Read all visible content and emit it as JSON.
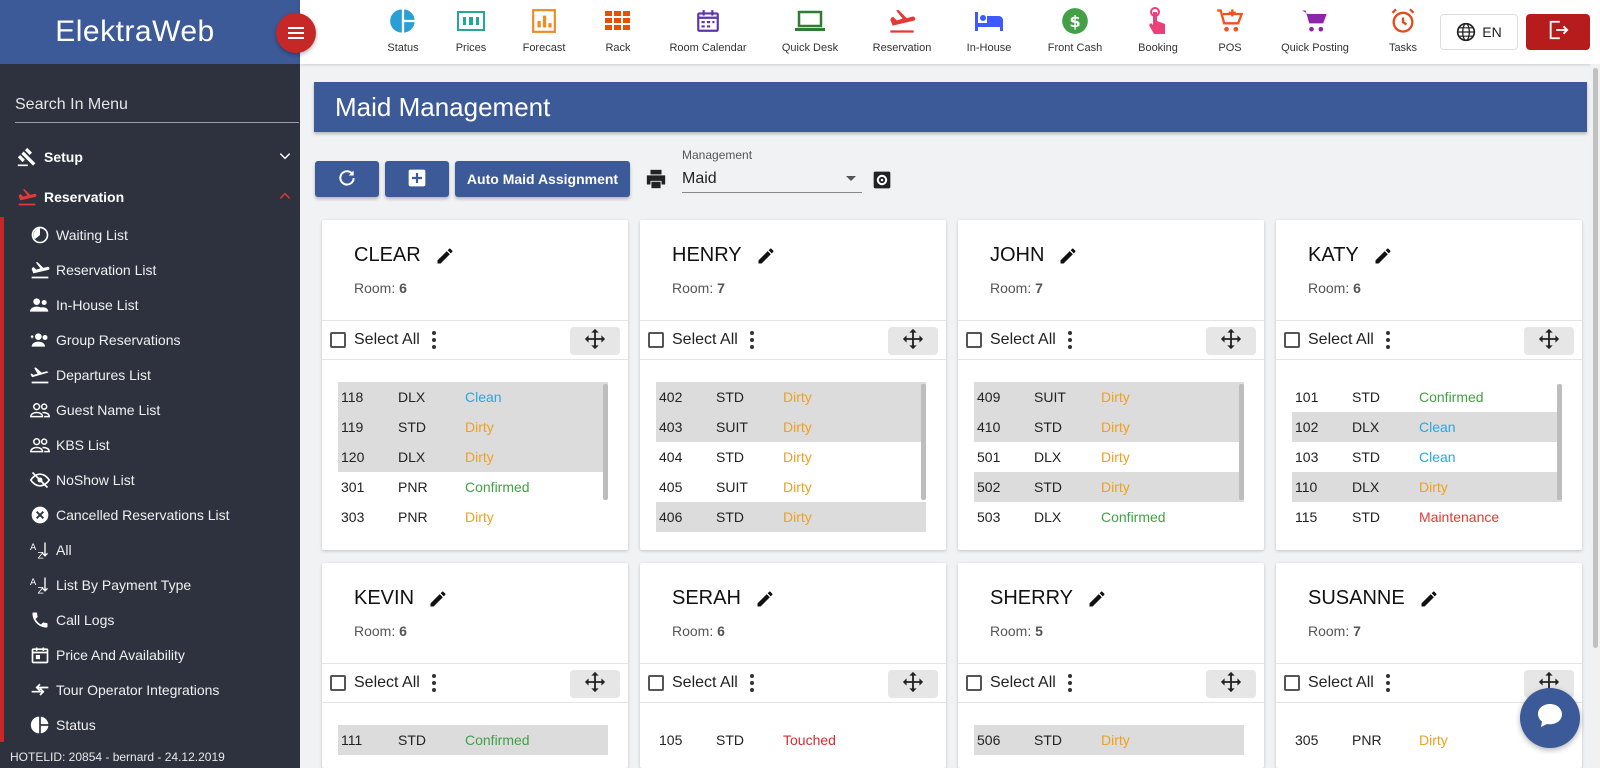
{
  "brand": {
    "name": "ElektraWeb"
  },
  "sidebar": {
    "search_placeholder": "Search In Menu",
    "groups": [
      {
        "label": "Setup",
        "expanded": false
      },
      {
        "label": "Reservation",
        "expanded": true
      }
    ],
    "items": [
      {
        "label": "Waiting List",
        "icon": "waiting-icon"
      },
      {
        "label": "Reservation List",
        "icon": "plane-landing-icon"
      },
      {
        "label": "In-House List",
        "icon": "people-icon"
      },
      {
        "label": "Group Reservations",
        "icon": "group-add-icon"
      },
      {
        "label": "Departures List",
        "icon": "plane-takeoff-icon"
      },
      {
        "label": "Guest Name List",
        "icon": "people-outline-icon"
      },
      {
        "label": "KBS List",
        "icon": "people-outline-icon"
      },
      {
        "label": "NoShow List",
        "icon": "eye-off-icon"
      },
      {
        "label": "Cancelled Reservations List",
        "icon": "cancel-circle-icon"
      },
      {
        "label": "All",
        "icon": "sort-az-icon"
      },
      {
        "label": "List By Payment Type",
        "icon": "sort-az-icon"
      },
      {
        "label": "Call Logs",
        "icon": "phone-icon"
      },
      {
        "label": "Price And Availability",
        "icon": "calendar-icon"
      },
      {
        "label": "Tour Operator Integrations",
        "icon": "swap-icon"
      },
      {
        "label": "Status",
        "icon": "pie-icon"
      }
    ],
    "footer": "HOTELID: 20854 - bernard - 24.12.2019"
  },
  "topbar": {
    "items": [
      {
        "label": "Status",
        "icon": "pie-chart-icon",
        "color": "#2a9fd6"
      },
      {
        "label": "Prices",
        "icon": "prices-icon",
        "color": "#26a69a"
      },
      {
        "label": "Forecast",
        "icon": "bar-chart-icon",
        "color": "#f08a24"
      },
      {
        "label": "Rack",
        "icon": "grid-icon",
        "color": "#e65100"
      },
      {
        "label": "Room Calendar",
        "icon": "calendar-icon",
        "color": "#5e35b1"
      },
      {
        "label": "Quick Desk",
        "icon": "laptop-icon",
        "color": "#2e7d32"
      },
      {
        "label": "Reservation",
        "icon": "plane-landing-icon",
        "color": "#e53935"
      },
      {
        "label": "In-House",
        "icon": "bed-icon",
        "color": "#3d5afe"
      },
      {
        "label": "Front Cash",
        "icon": "dollar-icon",
        "color": "#43a047"
      },
      {
        "label": "Booking",
        "icon": "touch-icon",
        "color": "#ec407a"
      },
      {
        "label": "POS",
        "icon": "cart-plus-icon",
        "color": "#f4511e"
      },
      {
        "label": "Quick Posting",
        "icon": "cart-icon",
        "color": "#8e24aa"
      },
      {
        "label": "Tasks",
        "icon": "alarm-icon",
        "color": "#e64a19"
      }
    ],
    "lang": "EN"
  },
  "page": {
    "title": "Maid Management",
    "auto_assign_label": "Auto Maid Assignment",
    "management_label": "Management",
    "management_value": "Maid",
    "select_all_label": "Select All",
    "room_label": "Room:"
  },
  "maids": [
    {
      "name": "CLEAR",
      "rooms": "6",
      "list": [
        {
          "no": "118",
          "type": "DLX",
          "status": "Clean",
          "sel": true
        },
        {
          "no": "119",
          "type": "STD",
          "status": "Dirty",
          "sel": true
        },
        {
          "no": "120",
          "type": "DLX",
          "status": "Dirty",
          "sel": true
        },
        {
          "no": "301",
          "type": "PNR",
          "status": "Confirmed",
          "sel": false
        },
        {
          "no": "303",
          "type": "PNR",
          "status": "Dirty",
          "sel": false
        }
      ]
    },
    {
      "name": "HENRY",
      "rooms": "7",
      "list": [
        {
          "no": "402",
          "type": "STD",
          "status": "Dirty",
          "sel": true
        },
        {
          "no": "403",
          "type": "SUIT",
          "status": "Dirty",
          "sel": true
        },
        {
          "no": "404",
          "type": "STD",
          "status": "Dirty",
          "sel": false
        },
        {
          "no": "405",
          "type": "SUIT",
          "status": "Dirty",
          "sel": false
        },
        {
          "no": "406",
          "type": "STD",
          "status": "Dirty",
          "sel": true
        }
      ]
    },
    {
      "name": "JOHN",
      "rooms": "7",
      "list": [
        {
          "no": "409",
          "type": "SUIT",
          "status": "Dirty",
          "sel": true
        },
        {
          "no": "410",
          "type": "STD",
          "status": "Dirty",
          "sel": true
        },
        {
          "no": "501",
          "type": "DLX",
          "status": "Dirty",
          "sel": false
        },
        {
          "no": "502",
          "type": "STD",
          "status": "Dirty",
          "sel": true
        },
        {
          "no": "503",
          "type": "DLX",
          "status": "Confirmed",
          "sel": false
        }
      ]
    },
    {
      "name": "KATY",
      "rooms": "6",
      "list": [
        {
          "no": "101",
          "type": "STD",
          "status": "Confirmed",
          "sel": false
        },
        {
          "no": "102",
          "type": "DLX",
          "status": "Clean",
          "sel": true
        },
        {
          "no": "103",
          "type": "STD",
          "status": "Clean",
          "sel": false
        },
        {
          "no": "110",
          "type": "DLX",
          "status": "Dirty",
          "sel": true
        },
        {
          "no": "115",
          "type": "STD",
          "status": "Maintenance",
          "sel": false
        }
      ]
    },
    {
      "name": "KEVIN",
      "rooms": "6",
      "list": [
        {
          "no": "111",
          "type": "STD",
          "status": "Confirmed",
          "sel": true
        }
      ]
    },
    {
      "name": "SERAH",
      "rooms": "6",
      "list": [
        {
          "no": "105",
          "type": "STD",
          "status": "Touched",
          "sel": false
        }
      ]
    },
    {
      "name": "SHERRY",
      "rooms": "5",
      "list": [
        {
          "no": "506",
          "type": "STD",
          "status": "Dirty",
          "sel": true
        }
      ]
    },
    {
      "name": "SUSANNE",
      "rooms": "7",
      "list": [
        {
          "no": "305",
          "type": "PNR",
          "status": "Dirty",
          "sel": false
        }
      ]
    }
  ],
  "colors": {
    "primary": "#3d5a98",
    "accent": "#c62828",
    "sidebar_bg": "#2d323e",
    "clean": "#29a8e0",
    "dirty": "#f0a020",
    "confirmed": "#43a047",
    "maintenance": "#e53935"
  }
}
